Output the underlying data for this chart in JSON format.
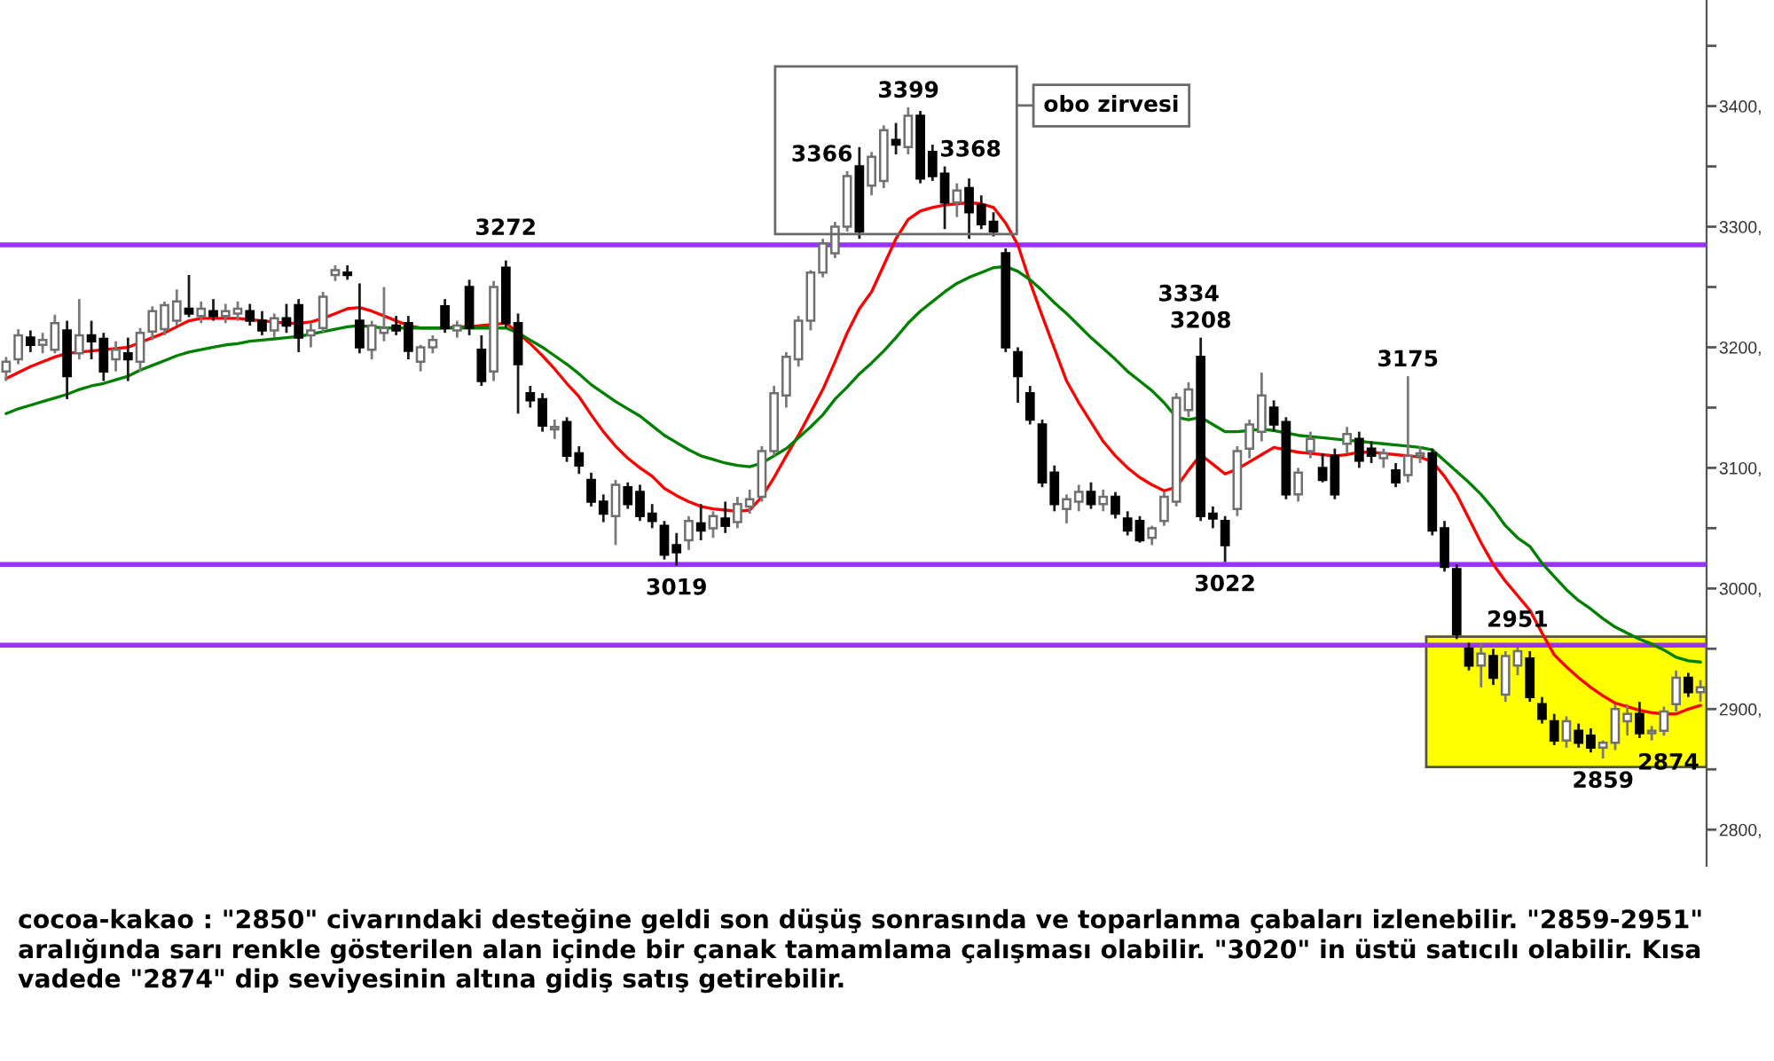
{
  "chart_data": {
    "type": "candlestick",
    "categories": [
      null,
      null,
      null,
      null,
      null,
      null,
      null,
      null,
      null,
      null,
      null,
      null,
      null,
      null,
      null,
      null,
      null,
      null,
      null,
      null,
      null,
      null,
      null,
      null,
      null,
      null,
      null,
      null,
      null,
      null,
      null,
      null,
      null,
      null,
      null,
      null,
      null,
      null,
      null,
      null,
      null,
      null,
      null,
      null,
      null,
      null,
      null,
      null,
      null,
      null,
      null,
      null,
      null,
      null,
      null,
      null,
      null,
      null,
      null,
      null,
      null,
      null,
      null,
      null,
      null,
      null,
      null,
      null,
      null,
      null,
      null,
      null,
      null,
      null,
      null,
      null,
      null,
      null,
      null,
      null,
      null,
      null,
      null,
      null,
      null,
      null,
      null,
      null,
      null,
      null,
      null,
      null,
      null,
      null,
      null,
      null,
      null,
      null,
      null,
      null,
      null,
      null,
      null,
      null,
      null,
      null,
      null,
      null,
      null,
      null,
      null,
      null,
      null,
      null,
      null,
      null,
      null,
      null,
      null,
      null,
      null,
      null,
      null,
      null,
      null,
      null,
      null,
      null,
      null,
      null,
      null,
      null,
      null,
      null,
      null,
      null,
      null,
      null,
      null,
      null
    ],
    "ohlc": [
      [
        3180,
        3192,
        3172,
        3188
      ],
      [
        3190,
        3215,
        3186,
        3210
      ],
      [
        3208,
        3214,
        3196,
        3202
      ],
      [
        3202,
        3212,
        3195,
        3206
      ],
      [
        3198,
        3227,
        3195,
        3220
      ],
      [
        3214,
        3222,
        3157,
        3176
      ],
      [
        3195,
        3240,
        3190,
        3210
      ],
      [
        3210,
        3222,
        3190,
        3205
      ],
      [
        3207,
        3212,
        3172,
        3180
      ],
      [
        3190,
        3205,
        3180,
        3198
      ],
      [
        3195,
        3208,
        3172,
        3190
      ],
      [
        3188,
        3216,
        3180,
        3212
      ],
      [
        3213,
        3234,
        3206,
        3230
      ],
      [
        3215,
        3238,
        3210,
        3235
      ],
      [
        3222,
        3248,
        3218,
        3238
      ],
      [
        3232,
        3260,
        3225,
        3228
      ],
      [
        3226,
        3238,
        3220,
        3232
      ],
      [
        3230,
        3240,
        3222,
        3226
      ],
      [
        3226,
        3236,
        3220,
        3230
      ],
      [
        3228,
        3238,
        3222,
        3232
      ],
      [
        3230,
        3236,
        3218,
        3222
      ],
      [
        3222,
        3230,
        3210,
        3214
      ],
      [
        3214,
        3228,
        3208,
        3224
      ],
      [
        3224,
        3236,
        3212,
        3218
      ],
      [
        3235,
        3240,
        3196,
        3208
      ],
      [
        3210,
        3220,
        3200,
        3214
      ],
      [
        3216,
        3246,
        3212,
        3242
      ],
      [
        3260,
        3268,
        3255,
        3264
      ],
      [
        3262,
        3268,
        3256,
        3260
      ],
      [
        3222,
        3253,
        3195,
        3200
      ],
      [
        3198,
        3222,
        3190,
        3218
      ],
      [
        3212,
        3250,
        3205,
        3216
      ],
      [
        3218,
        3226,
        3210,
        3214
      ],
      [
        3220,
        3226,
        3190,
        3197
      ],
      [
        3188,
        3202,
        3180,
        3200
      ],
      [
        3200,
        3210,
        3195,
        3206
      ],
      [
        3234,
        3240,
        3212,
        3216
      ],
      [
        3214,
        3222,
        3208,
        3218
      ],
      [
        3250,
        3256,
        3210,
        3216
      ],
      [
        3198,
        3210,
        3168,
        3172
      ],
      [
        3180,
        3255,
        3172,
        3250
      ],
      [
        3266,
        3272,
        3216,
        3220
      ],
      [
        3220,
        3228,
        3145,
        3186
      ],
      [
        3162,
        3168,
        3150,
        3156
      ],
      [
        3157,
        3162,
        3130,
        3135
      ],
      [
        3132,
        3140,
        3124,
        3134
      ],
      [
        3138,
        3142,
        3105,
        3110
      ],
      [
        3112,
        3118,
        3095,
        3102
      ],
      [
        3090,
        3096,
        3068,
        3072
      ],
      [
        3072,
        3078,
        3055,
        3062
      ],
      [
        3060,
        3090,
        3036,
        3086
      ],
      [
        3084,
        3088,
        3066,
        3070
      ],
      [
        3080,
        3086,
        3056,
        3060
      ],
      [
        3062,
        3070,
        3050,
        3056
      ],
      [
        3052,
        3056,
        3024,
        3028
      ],
      [
        3036,
        3046,
        3019,
        3030
      ],
      [
        3040,
        3060,
        3032,
        3056
      ],
      [
        3054,
        3070,
        3040,
        3048
      ],
      [
        3050,
        3064,
        3042,
        3060
      ],
      [
        3058,
        3072,
        3046,
        3052
      ],
      [
        3055,
        3076,
        3050,
        3070
      ],
      [
        3068,
        3082,
        3062,
        3074
      ],
      [
        3076,
        3118,
        3072,
        3114
      ],
      [
        3114,
        3168,
        3110,
        3162
      ],
      [
        3160,
        3196,
        3150,
        3192
      ],
      [
        3190,
        3226,
        3184,
        3222
      ],
      [
        3222,
        3264,
        3214,
        3262
      ],
      [
        3262,
        3290,
        3258,
        3286
      ],
      [
        3278,
        3304,
        3274,
        3300
      ],
      [
        3300,
        3346,
        3296,
        3342
      ],
      [
        3350,
        3366,
        3290,
        3296
      ],
      [
        3334,
        3362,
        3326,
        3358
      ],
      [
        3338,
        3384,
        3332,
        3380
      ],
      [
        3372,
        3386,
        3360,
        3368
      ],
      [
        3366,
        3399,
        3360,
        3392
      ],
      [
        3392,
        3396,
        3336,
        3340
      ],
      [
        3362,
        3368,
        3338,
        3342
      ],
      [
        3344,
        3350,
        3298,
        3320
      ],
      [
        3320,
        3336,
        3308,
        3330
      ],
      [
        3332,
        3340,
        3290,
        3312
      ],
      [
        3318,
        3326,
        3298,
        3302
      ],
      [
        3304,
        3312,
        3292,
        3296
      ],
      [
        3278,
        3282,
        3196,
        3200
      ],
      [
        3196,
        3200,
        3154,
        3176
      ],
      [
        3162,
        3168,
        3136,
        3140
      ],
      [
        3136,
        3140,
        3084,
        3088
      ],
      [
        3096,
        3102,
        3064,
        3070
      ],
      [
        3066,
        3078,
        3054,
        3074
      ],
      [
        3072,
        3086,
        3064,
        3080
      ],
      [
        3080,
        3088,
        3066,
        3070
      ],
      [
        3070,
        3082,
        3064,
        3076
      ],
      [
        3076,
        3080,
        3058,
        3062
      ],
      [
        3058,
        3064,
        3044,
        3048
      ],
      [
        3056,
        3060,
        3038,
        3040
      ],
      [
        3042,
        3052,
        3036,
        3050
      ],
      [
        3056,
        3080,
        3052,
        3076
      ],
      [
        3072,
        3162,
        3068,
        3158
      ],
      [
        3148,
        3171,
        3142,
        3165
      ],
      [
        3192,
        3208,
        3056,
        3060
      ],
      [
        3062,
        3068,
        3050,
        3058
      ],
      [
        3056,
        3060,
        3022,
        3036
      ],
      [
        3066,
        3118,
        3060,
        3114
      ],
      [
        3116,
        3140,
        3108,
        3136
      ],
      [
        3130,
        3179,
        3122,
        3160
      ],
      [
        3150,
        3156,
        3130,
        3136
      ],
      [
        3138,
        3142,
        3074,
        3078
      ],
      [
        3078,
        3100,
        3072,
        3096
      ],
      [
        3114,
        3130,
        3108,
        3124
      ],
      [
        3100,
        3112,
        3088,
        3090
      ],
      [
        3110,
        3116,
        3074,
        3078
      ],
      [
        3120,
        3134,
        3112,
        3128
      ],
      [
        3124,
        3130,
        3100,
        3106
      ],
      [
        3116,
        3122,
        3104,
        3110
      ],
      [
        3108,
        3116,
        3100,
        3112
      ],
      [
        3098,
        3104,
        3084,
        3088
      ],
      [
        3094,
        3176,
        3088,
        3110
      ],
      [
        3110,
        3118,
        3104,
        3112
      ],
      [
        3112,
        3116,
        3044,
        3048
      ],
      [
        3050,
        3056,
        3014,
        3018
      ],
      [
        3016,
        3020,
        2958,
        2962
      ],
      [
        2950,
        2955,
        2932,
        2936
      ],
      [
        2936,
        2954,
        2918,
        2946
      ],
      [
        2944,
        2950,
        2920,
        2926
      ],
      [
        2912,
        2948,
        2906,
        2944
      ],
      [
        2936,
        2951,
        2928,
        2948
      ],
      [
        2942,
        2948,
        2906,
        2910
      ],
      [
        2904,
        2910,
        2888,
        2892
      ],
      [
        2890,
        2896,
        2870,
        2874
      ],
      [
        2874,
        2894,
        2868,
        2890
      ],
      [
        2882,
        2888,
        2868,
        2872
      ],
      [
        2878,
        2884,
        2864,
        2868
      ],
      [
        2868,
        2874,
        2859,
        2872
      ],
      [
        2872,
        2904,
        2866,
        2900
      ],
      [
        2890,
        2904,
        2878,
        2896
      ],
      [
        2896,
        2906,
        2876,
        2880
      ],
      [
        2880,
        2886,
        2874,
        2882
      ],
      [
        2882,
        2902,
        2878,
        2898
      ],
      [
        2904,
        2932,
        2898,
        2926
      ],
      [
        2926,
        2930,
        2910,
        2914
      ],
      [
        2914,
        2924,
        2906,
        2918
      ]
    ],
    "series": [
      {
        "type": "line",
        "color": "#ff0000",
        "values": [
          3174,
          3179,
          3184,
          3188,
          3192,
          3195,
          3196,
          3197,
          3198,
          3199,
          3200,
          3204,
          3208,
          3212,
          3217,
          3222,
          3224,
          3224,
          3224,
          3224,
          3223,
          3222,
          3221,
          3220,
          3220,
          3221,
          3224,
          3228,
          3232,
          3233,
          3230,
          3226,
          3222,
          3218,
          3216,
          3216,
          3216,
          3217,
          3217,
          3218,
          3219,
          3220,
          3212,
          3203,
          3193,
          3182,
          3170,
          3159,
          3144,
          3130,
          3118,
          3108,
          3100,
          3093,
          3083,
          3077,
          3072,
          3068,
          3066,
          3065,
          3064,
          3065,
          3076,
          3092,
          3110,
          3127,
          3146,
          3165,
          3188,
          3212,
          3232,
          3246,
          3268,
          3290,
          3306,
          3313,
          3316,
          3318,
          3319,
          3320,
          3319,
          3316,
          3303,
          3285,
          3254,
          3226,
          3199,
          3172,
          3154,
          3138,
          3122,
          3110,
          3100,
          3092,
          3086,
          3081,
          3084,
          3098,
          3111,
          3103,
          3095,
          3099,
          3105,
          3111,
          3117,
          3115,
          3113,
          3112,
          3111,
          3110,
          3111,
          3113,
          3113,
          3112,
          3111,
          3110,
          3109,
          3105,
          3093,
          3078,
          3058,
          3038,
          3020,
          3006,
          2994,
          2982,
          2963,
          2945,
          2935,
          2926,
          2918,
          2911,
          2905,
          2902,
          2899,
          2897,
          2896,
          2896,
          2900,
          2903
        ]
      },
      {
        "type": "line",
        "color": "#008000",
        "values": [
          3145,
          3149,
          3152,
          3155,
          3158,
          3161,
          3165,
          3168,
          3170,
          3173,
          3176,
          3181,
          3185,
          3189,
          3193,
          3196,
          3198,
          3200,
          3202,
          3203,
          3205,
          3206,
          3207,
          3208,
          3209,
          3211,
          3213,
          3215,
          3217,
          3218,
          3217,
          3216,
          3216,
          3216,
          3216,
          3216,
          3216,
          3216,
          3216,
          3216,
          3216,
          3216,
          3212,
          3206,
          3200,
          3193,
          3186,
          3178,
          3169,
          3162,
          3155,
          3149,
          3143,
          3135,
          3127,
          3121,
          3115,
          3110,
          3107,
          3104,
          3102,
          3101,
          3104,
          3110,
          3116,
          3125,
          3134,
          3144,
          3157,
          3167,
          3178,
          3187,
          3197,
          3208,
          3220,
          3230,
          3238,
          3246,
          3253,
          3258,
          3262,
          3266,
          3267,
          3263,
          3256,
          3247,
          3237,
          3228,
          3218,
          3208,
          3199,
          3190,
          3180,
          3172,
          3164,
          3154,
          3142,
          3140,
          3142,
          3136,
          3130,
          3130,
          3131,
          3132,
          3131,
          3129,
          3127,
          3126,
          3125,
          3124,
          3123,
          3122,
          3121,
          3120,
          3119,
          3118,
          3117,
          3115,
          3106,
          3097,
          3088,
          3078,
          3066,
          3052,
          3042,
          3035,
          3021,
          3010,
          2999,
          2990,
          2983,
          2975,
          2968,
          2963,
          2958,
          2954,
          2949,
          2943,
          2940,
          2939
        ]
      }
    ],
    "ref_lines": [
      {
        "axis": "y",
        "value": 3285,
        "color": "#9933ff"
      },
      {
        "axis": "y",
        "value": 3020,
        "color": "#9933ff"
      },
      {
        "axis": "y",
        "value": 2953,
        "color": "#9933ff"
      }
    ],
    "value_labels": [
      null,
      null,
      null,
      null,
      null,
      null,
      null,
      null,
      null,
      null,
      null,
      null,
      null,
      null,
      null,
      null,
      null,
      null,
      null,
      null,
      null,
      null,
      null,
      null,
      null,
      null,
      null,
      null,
      null,
      null,
      null,
      null,
      null,
      null,
      null,
      null,
      null,
      null,
      null,
      null,
      null,
      "3272",
      null,
      null,
      null,
      null,
      null,
      null,
      null,
      null,
      null,
      null,
      null,
      null,
      null,
      "3019",
      null,
      null,
      null,
      null,
      null,
      null,
      null,
      null,
      null,
      null,
      null,
      null,
      null,
      null,
      "3366",
      null,
      null,
      null,
      "3399",
      null,
      "3368",
      null,
      null,
      null,
      null,
      null,
      null,
      null,
      null,
      null,
      null,
      null,
      null,
      null,
      null,
      null,
      null,
      null,
      null,
      null,
      null,
      "3334",
      "3208",
      null,
      "3022",
      null,
      null,
      null,
      null,
      null,
      null,
      null,
      null,
      null,
      null,
      null,
      null,
      null,
      null,
      "3175",
      null,
      null,
      null,
      null,
      null,
      null,
      null,
      null,
      "2951",
      null,
      null,
      null,
      null,
      null,
      null,
      "2859",
      null,
      null,
      null,
      "2874",
      null,
      null,
      null,
      null
    ],
    "bands": [
      {
        "axis": "y",
        "from": 2852,
        "to": 2960,
        "color": "#ffff00"
      }
    ],
    "annotations": [
      "obo zirvesi",
      "cocoa-kakao : \"2850\" civarındaki desteğine geldi son düşüş sonrasında ve toparlanma çabaları izlenebilir. \"2859-2951\" aralığında sarı renkle gösterilen alan içinde bir çanak tamamlama çalışması olabilir. \"3020\" in üstü satıcılı olabilir. Kısa vadede \"2874\" dip seviyesinin altına gidiş satış getirebilir."
    ],
    "ylim": [
      2770,
      3488
    ],
    "yticks": [
      {
        "value": 3450,
        "label": null
      },
      {
        "value": 3400,
        "label": "3400,"
      },
      {
        "value": 3350,
        "label": null
      },
      {
        "value": 3300,
        "label": "3300,"
      },
      {
        "value": 3250,
        "label": null
      },
      {
        "value": 3200,
        "label": "3200,"
      },
      {
        "value": 3150,
        "label": null
      },
      {
        "value": 3100,
        "label": "3100,"
      },
      {
        "value": 3050,
        "label": null
      },
      {
        "value": 3000,
        "label": "3000,"
      },
      {
        "value": 2950,
        "label": null
      },
      {
        "value": 2900,
        "label": "2900,"
      },
      {
        "value": 2850,
        "label": null
      },
      {
        "value": 2800,
        "label": "2800,"
      }
    ],
    "tick_labels": "y"
  }
}
